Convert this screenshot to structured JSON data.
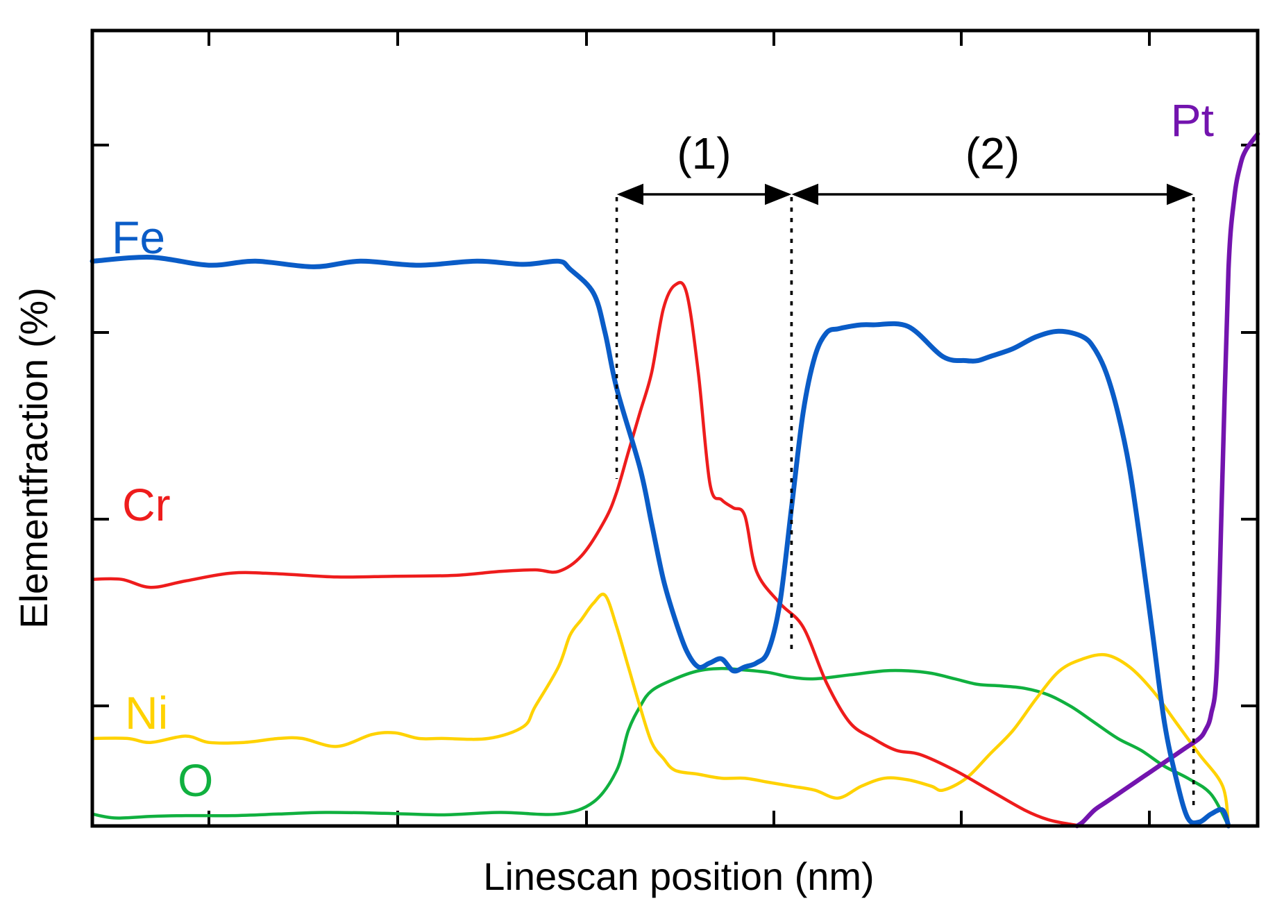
{
  "chart_data": {
    "type": "line",
    "title": "",
    "xlabel": "Linescan position (nm)",
    "ylabel": "Elementfraction (%)",
    "xlim": [
      0,
      100
    ],
    "ylim": [
      0,
      100
    ],
    "tick_labels_shown": false,
    "grid": false,
    "series": [
      {
        "name": "Fe",
        "color": "#0a5cc7",
        "x": [
          0,
          5,
          10,
          14,
          19,
          23,
          28,
          33,
          37,
          40,
          41,
          43,
          44,
          45,
          47,
          48,
          49,
          50,
          51,
          52,
          53,
          54,
          55,
          56,
          57,
          58,
          59,
          60,
          61,
          62,
          63,
          64,
          65,
          66,
          67,
          70,
          73,
          75,
          76,
          77,
          79,
          81,
          83,
          85,
          86,
          87,
          88,
          89,
          90,
          91,
          92,
          93,
          94,
          95,
          96,
          97,
          97.5
        ],
        "y": [
          71,
          71.5,
          70.5,
          71,
          70.3,
          71,
          70.5,
          71,
          70.6,
          71,
          70,
          67,
          62,
          55,
          45,
          38,
          31,
          26,
          22,
          20,
          20.5,
          21,
          19.5,
          20,
          20.5,
          22,
          28,
          40,
          52,
          59,
          62,
          62.5,
          62.8,
          63,
          63,
          62.8,
          59,
          58.5,
          58.5,
          59,
          60,
          61.5,
          62.2,
          61.5,
          60,
          57,
          52,
          45,
          35,
          24,
          13,
          6,
          1,
          0.5,
          1.5,
          2,
          0
        ]
      },
      {
        "name": "Cr",
        "color": "#ee1c1c",
        "x": [
          0,
          2.5,
          5,
          8,
          12,
          16,
          21,
          26,
          31,
          35,
          38,
          40,
          42,
          44,
          45,
          46,
          47,
          48,
          49,
          50,
          51,
          52,
          53,
          54,
          55,
          56,
          57,
          59,
          61,
          63,
          65,
          67,
          69,
          71,
          74,
          77,
          80,
          82,
          84,
          85
        ],
        "y": [
          31,
          31,
          30,
          30.8,
          31.8,
          31.7,
          31.3,
          31.4,
          31.5,
          32,
          32.2,
          32,
          34,
          38.5,
          42,
          47,
          52,
          57,
          65,
          68,
          67,
          57,
          43,
          41,
          40,
          39,
          32,
          28,
          25,
          18,
          13,
          11,
          9.5,
          9,
          7,
          4.5,
          2,
          0.8,
          0.2,
          0
        ]
      },
      {
        "name": "Ni",
        "color": "#ffd200",
        "x": [
          0,
          3,
          5,
          8,
          10,
          13,
          16,
          18,
          21,
          24,
          26,
          28,
          30,
          34,
          37,
          38,
          40,
          41,
          42,
          43,
          44,
          45,
          46,
          47,
          48,
          49,
          50,
          52,
          54,
          56,
          58,
          60,
          62,
          64,
          66,
          68,
          70,
          72,
          73,
          75,
          77,
          79,
          81,
          83,
          85,
          87,
          89,
          91,
          93,
          95,
          97,
          97.5
        ],
        "y": [
          11,
          11,
          10.5,
          11.3,
          10.5,
          10.5,
          11,
          11,
          10,
          11.5,
          11.7,
          11,
          11,
          11,
          12.5,
          15,
          20,
          24,
          26,
          28,
          29,
          25,
          20,
          15,
          10.5,
          8.5,
          7,
          6.5,
          6,
          6,
          5.5,
          5,
          4.5,
          3.5,
          5,
          6,
          5.8,
          5,
          4.5,
          6,
          9,
          12,
          16,
          19.5,
          21,
          21.5,
          20,
          17,
          13,
          9,
          5,
          0
        ]
      },
      {
        "name": "O",
        "color": "#10b03f",
        "x": [
          0,
          2,
          5,
          8,
          12,
          16,
          20,
          25,
          30,
          35,
          40,
          43,
          45,
          46,
          47,
          48,
          50,
          52,
          54,
          56,
          58,
          60,
          62,
          65,
          68,
          70,
          72,
          74,
          76,
          78,
          80,
          82,
          84,
          86,
          88,
          90,
          92,
          94,
          96,
          97.5
        ],
        "y": [
          1.5,
          1,
          1.2,
          1.3,
          1.3,
          1.5,
          1.7,
          1.6,
          1.4,
          1.7,
          1.5,
          3,
          7,
          12,
          15,
          17,
          18.5,
          19.5,
          19.8,
          19.6,
          19.3,
          18.7,
          18.5,
          19,
          19.5,
          19.5,
          19.2,
          18.5,
          17.8,
          17.6,
          17.3,
          16.5,
          15,
          13,
          11,
          9.5,
          7.5,
          6,
          4,
          0
        ]
      },
      {
        "name": "Pt",
        "color": "#7314ae",
        "x": [
          84.5,
          85,
          86,
          87,
          88,
          89,
          90,
          91,
          92,
          93,
          94,
          95,
          95.5,
          96,
          96.5,
          97,
          97.5,
          98,
          98.5,
          99,
          100
        ],
        "y": [
          0,
          0.5,
          2,
          3,
          4,
          5,
          6,
          7,
          8,
          9,
          10,
          11,
          12,
          14,
          20,
          45,
          70,
          79,
          83,
          85,
          87
        ]
      }
    ],
    "annotations": [
      {
        "label": "(1)",
        "x_start": 45,
        "x_end": 60,
        "type": "double-arrow-with-dashed-bounds"
      },
      {
        "label": "(2)",
        "x_start": 60,
        "x_end": 94.5,
        "type": "double-arrow-with-dashed-bounds"
      }
    ]
  }
}
